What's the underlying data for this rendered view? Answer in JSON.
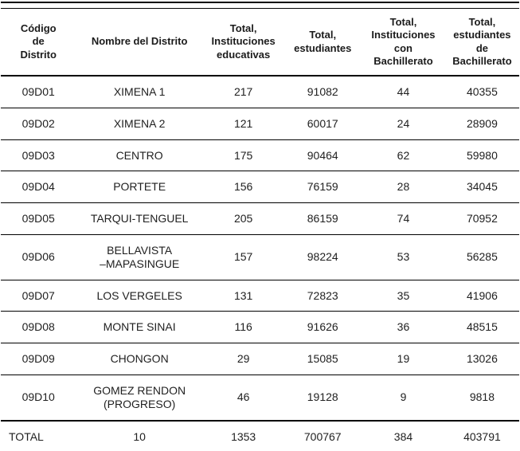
{
  "table": {
    "columns": {
      "code": "Código\nde\nDistrito",
      "name": "Nombre del Distrito",
      "institutions": "Total,\nInstituciones\neducativas",
      "students": "Total,\nestudiantes",
      "institutions_bachillerato": "Total,\nInstituciones\ncon\nBachillerato",
      "students_bachillerato": "Total,\nestudiantes\nde\nBachillerato"
    },
    "rows": [
      {
        "code": "09D01",
        "name": "XIMENA 1",
        "institutions": "217",
        "students": "91082",
        "institutions_bachillerato": "44",
        "students_bachillerato": "40355"
      },
      {
        "code": "09D02",
        "name": "XIMENA 2",
        "institutions": "121",
        "students": "60017",
        "institutions_bachillerato": "24",
        "students_bachillerato": "28909"
      },
      {
        "code": "09D03",
        "name": "CENTRO",
        "institutions": "175",
        "students": "90464",
        "institutions_bachillerato": "62",
        "students_bachillerato": "59980"
      },
      {
        "code": "09D04",
        "name": "PORTETE",
        "institutions": "156",
        "students": "76159",
        "institutions_bachillerato": "28",
        "students_bachillerato": "34045"
      },
      {
        "code": "09D05",
        "name": "TARQUI-TENGUEL",
        "institutions": "205",
        "students": "86159",
        "institutions_bachillerato": "74",
        "students_bachillerato": "70952"
      },
      {
        "code": "09D06",
        "name": "BELLAVISTA\n–MAPASINGUE",
        "institutions": "157",
        "students": "98224",
        "institutions_bachillerato": "53",
        "students_bachillerato": "56285"
      },
      {
        "code": "09D07",
        "name": "LOS VERGELES",
        "institutions": "131",
        "students": "72823",
        "institutions_bachillerato": "35",
        "students_bachillerato": "41906"
      },
      {
        "code": "09D08",
        "name": "MONTE SINAI",
        "institutions": "116",
        "students": "91626",
        "institutions_bachillerato": "36",
        "students_bachillerato": "48515"
      },
      {
        "code": "09D09",
        "name": "CHONGON",
        "institutions": "29",
        "students": "15085",
        "institutions_bachillerato": "19",
        "students_bachillerato": "13026"
      },
      {
        "code": "09D10",
        "name": "GOMEZ RENDON\n(PROGRESO)",
        "institutions": "46",
        "students": "19128",
        "institutions_bachillerato": "9",
        "students_bachillerato": "9818"
      }
    ],
    "total_row": {
      "code": "TOTAL",
      "name": "10",
      "institutions": "1353",
      "students": "700767",
      "institutions_bachillerato": "384",
      "students_bachillerato": "403791"
    }
  },
  "colors": {
    "text": "#1f1f1f",
    "rule": "#000000",
    "background": "#ffffff"
  }
}
